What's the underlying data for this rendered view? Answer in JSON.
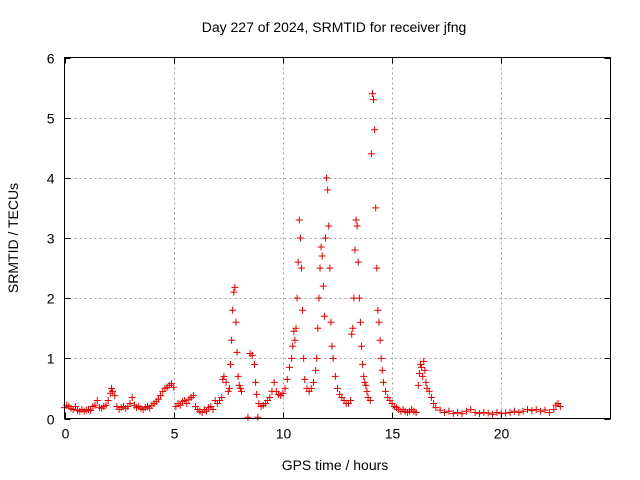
{
  "chart_data": {
    "type": "scatter",
    "title": "Day 227 of 2024, SRMTID for receiver jfng",
    "xlabel": "GPS time / hours",
    "ylabel": "SRMTID / TECUs",
    "xlim": [
      0,
      25
    ],
    "ylim": [
      0,
      6
    ],
    "xticks": [
      0,
      5,
      10,
      15,
      20
    ],
    "xtick_labels": [
      "0",
      "5",
      "10",
      "15",
      "20"
    ],
    "yticks": [
      0,
      1,
      2,
      3,
      4,
      5,
      6
    ],
    "ytick_labels": [
      "0",
      "1",
      "2",
      "3",
      "4",
      "5",
      "6"
    ],
    "grid": true,
    "marker": "+",
    "color": "#e00000",
    "series": [
      {
        "name": "SRMTID",
        "points": [
          [
            0.0,
            0.18
          ],
          [
            0.1,
            0.22
          ],
          [
            0.2,
            0.2
          ],
          [
            0.3,
            0.17
          ],
          [
            0.4,
            0.15
          ],
          [
            0.5,
            0.2
          ],
          [
            0.6,
            0.13
          ],
          [
            0.7,
            0.12
          ],
          [
            0.8,
            0.15
          ],
          [
            0.9,
            0.12
          ],
          [
            1.0,
            0.14
          ],
          [
            1.1,
            0.15
          ],
          [
            1.2,
            0.13
          ],
          [
            1.3,
            0.2
          ],
          [
            1.4,
            0.22
          ],
          [
            1.5,
            0.3
          ],
          [
            1.6,
            0.18
          ],
          [
            1.7,
            0.17
          ],
          [
            1.8,
            0.2
          ],
          [
            1.9,
            0.22
          ],
          [
            2.0,
            0.3
          ],
          [
            2.1,
            0.42
          ],
          [
            2.15,
            0.5
          ],
          [
            2.2,
            0.45
          ],
          [
            2.3,
            0.38
          ],
          [
            2.4,
            0.2
          ],
          [
            2.5,
            0.15
          ],
          [
            2.6,
            0.18
          ],
          [
            2.7,
            0.2
          ],
          [
            2.8,
            0.17
          ],
          [
            2.9,
            0.2
          ],
          [
            3.0,
            0.25
          ],
          [
            3.1,
            0.35
          ],
          [
            3.2,
            0.22
          ],
          [
            3.3,
            0.18
          ],
          [
            3.4,
            0.2
          ],
          [
            3.5,
            0.17
          ],
          [
            3.6,
            0.15
          ],
          [
            3.7,
            0.18
          ],
          [
            3.8,
            0.2
          ],
          [
            3.9,
            0.17
          ],
          [
            4.0,
            0.22
          ],
          [
            4.1,
            0.25
          ],
          [
            4.2,
            0.28
          ],
          [
            4.3,
            0.32
          ],
          [
            4.4,
            0.38
          ],
          [
            4.5,
            0.45
          ],
          [
            4.6,
            0.5
          ],
          [
            4.7,
            0.52
          ],
          [
            4.8,
            0.55
          ],
          [
            4.9,
            0.58
          ],
          [
            5.0,
            0.52
          ],
          [
            5.1,
            0.2
          ],
          [
            5.2,
            0.25
          ],
          [
            5.3,
            0.22
          ],
          [
            5.4,
            0.28
          ],
          [
            5.5,
            0.3
          ],
          [
            5.6,
            0.25
          ],
          [
            5.7,
            0.32
          ],
          [
            5.8,
            0.35
          ],
          [
            5.9,
            0.38
          ],
          [
            6.0,
            0.2
          ],
          [
            6.1,
            0.15
          ],
          [
            6.2,
            0.12
          ],
          [
            6.3,
            0.1
          ],
          [
            6.4,
            0.15
          ],
          [
            6.5,
            0.12
          ],
          [
            6.6,
            0.18
          ],
          [
            6.7,
            0.2
          ],
          [
            6.8,
            0.15
          ],
          [
            6.9,
            0.3
          ],
          [
            7.0,
            0.25
          ],
          [
            7.1,
            0.3
          ],
          [
            7.2,
            0.35
          ],
          [
            7.25,
            0.65
          ],
          [
            7.3,
            0.7
          ],
          [
            7.4,
            0.6
          ],
          [
            7.5,
            0.45
          ],
          [
            7.55,
            0.5
          ],
          [
            7.6,
            0.9
          ],
          [
            7.65,
            1.3
          ],
          [
            7.7,
            1.8
          ],
          [
            7.75,
            2.1
          ],
          [
            7.8,
            2.18
          ],
          [
            7.85,
            1.6
          ],
          [
            7.9,
            1.1
          ],
          [
            7.95,
            0.7
          ],
          [
            8.0,
            0.55
          ],
          [
            8.05,
            0.5
          ],
          [
            8.1,
            0.45
          ],
          [
            8.4,
            0.02
          ],
          [
            8.5,
            1.08
          ],
          [
            8.6,
            1.05
          ],
          [
            8.7,
            0.9
          ],
          [
            8.75,
            0.6
          ],
          [
            8.8,
            0.4
          ],
          [
            8.85,
            0.02
          ],
          [
            8.9,
            0.25
          ],
          [
            9.0,
            0.2
          ],
          [
            9.1,
            0.22
          ],
          [
            9.2,
            0.25
          ],
          [
            9.3,
            0.3
          ],
          [
            9.4,
            0.35
          ],
          [
            9.5,
            0.45
          ],
          [
            9.6,
            0.6
          ],
          [
            9.7,
            0.45
          ],
          [
            9.8,
            0.4
          ],
          [
            9.9,
            0.38
          ],
          [
            10.0,
            0.42
          ],
          [
            10.1,
            0.5
          ],
          [
            10.2,
            0.65
          ],
          [
            10.3,
            0.85
          ],
          [
            10.4,
            1.0
          ],
          [
            10.45,
            1.2
          ],
          [
            10.5,
            1.45
          ],
          [
            10.55,
            1.3
          ],
          [
            10.6,
            1.5
          ],
          [
            10.65,
            2.0
          ],
          [
            10.7,
            2.6
          ],
          [
            10.75,
            3.3
          ],
          [
            10.8,
            3.0
          ],
          [
            10.85,
            2.5
          ],
          [
            10.9,
            1.8
          ],
          [
            10.95,
            1.0
          ],
          [
            11.0,
            0.65
          ],
          [
            11.1,
            0.5
          ],
          [
            11.2,
            0.45
          ],
          [
            11.3,
            0.5
          ],
          [
            11.4,
            0.6
          ],
          [
            11.5,
            0.8
          ],
          [
            11.55,
            1.0
          ],
          [
            11.6,
            1.5
          ],
          [
            11.65,
            2.0
          ],
          [
            11.7,
            2.5
          ],
          [
            11.75,
            2.85
          ],
          [
            11.8,
            2.7
          ],
          [
            11.85,
            2.2
          ],
          [
            11.9,
            1.7
          ],
          [
            11.95,
            3.0
          ],
          [
            12.0,
            4.0
          ],
          [
            12.05,
            3.8
          ],
          [
            12.1,
            3.2
          ],
          [
            12.15,
            2.5
          ],
          [
            12.2,
            1.6
          ],
          [
            12.25,
            1.2
          ],
          [
            12.3,
            1.0
          ],
          [
            12.4,
            0.7
          ],
          [
            12.5,
            0.5
          ],
          [
            12.6,
            0.4
          ],
          [
            12.7,
            0.35
          ],
          [
            12.8,
            0.3
          ],
          [
            12.9,
            0.25
          ],
          [
            13.0,
            0.25
          ],
          [
            13.1,
            0.3
          ],
          [
            13.15,
            1.4
          ],
          [
            13.2,
            1.5
          ],
          [
            13.25,
            2.0
          ],
          [
            13.3,
            2.8
          ],
          [
            13.35,
            3.3
          ],
          [
            13.4,
            3.2
          ],
          [
            13.45,
            2.6
          ],
          [
            13.5,
            2.0
          ],
          [
            13.55,
            1.6
          ],
          [
            13.6,
            1.2
          ],
          [
            13.65,
            0.9
          ],
          [
            13.7,
            0.7
          ],
          [
            13.75,
            0.6
          ],
          [
            13.8,
            0.55
          ],
          [
            13.85,
            0.45
          ],
          [
            13.9,
            0.35
          ],
          [
            14.0,
            0.3
          ],
          [
            14.05,
            4.4
          ],
          [
            14.1,
            5.4
          ],
          [
            14.15,
            5.3
          ],
          [
            14.2,
            4.8
          ],
          [
            14.25,
            3.5
          ],
          [
            14.3,
            2.5
          ],
          [
            14.35,
            1.8
          ],
          [
            14.4,
            1.6
          ],
          [
            14.45,
            1.3
          ],
          [
            14.5,
            1.0
          ],
          [
            14.55,
            0.8
          ],
          [
            14.6,
            0.6
          ],
          [
            14.7,
            0.45
          ],
          [
            14.8,
            0.35
          ],
          [
            14.9,
            0.3
          ],
          [
            15.0,
            0.25
          ],
          [
            15.1,
            0.2
          ],
          [
            15.2,
            0.18
          ],
          [
            15.3,
            0.15
          ],
          [
            15.4,
            0.12
          ],
          [
            15.5,
            0.15
          ],
          [
            15.6,
            0.12
          ],
          [
            15.7,
            0.1
          ],
          [
            15.8,
            0.12
          ],
          [
            15.9,
            0.15
          ],
          [
            16.0,
            0.12
          ],
          [
            16.1,
            0.1
          ],
          [
            16.2,
            0.55
          ],
          [
            16.25,
            0.75
          ],
          [
            16.3,
            0.9
          ],
          [
            16.35,
            0.85
          ],
          [
            16.4,
            0.7
          ],
          [
            16.45,
            0.95
          ],
          [
            16.5,
            0.8
          ],
          [
            16.55,
            0.6
          ],
          [
            16.6,
            0.5
          ],
          [
            16.7,
            0.45
          ],
          [
            16.8,
            0.35
          ],
          [
            16.9,
            0.25
          ],
          [
            17.0,
            0.18
          ],
          [
            17.2,
            0.14
          ],
          [
            17.4,
            0.1
          ],
          [
            17.6,
            0.12
          ],
          [
            17.8,
            0.08
          ],
          [
            18.0,
            0.1
          ],
          [
            18.2,
            0.08
          ],
          [
            18.4,
            0.12
          ],
          [
            18.6,
            0.15
          ],
          [
            18.8,
            0.1
          ],
          [
            19.0,
            0.08
          ],
          [
            19.2,
            0.1
          ],
          [
            19.4,
            0.09
          ],
          [
            19.6,
            0.07
          ],
          [
            19.8,
            0.1
          ],
          [
            20.0,
            0.08
          ],
          [
            20.2,
            0.09
          ],
          [
            20.4,
            0.1
          ],
          [
            20.6,
            0.12
          ],
          [
            20.8,
            0.1
          ],
          [
            21.0,
            0.12
          ],
          [
            21.2,
            0.15
          ],
          [
            21.4,
            0.13
          ],
          [
            21.6,
            0.15
          ],
          [
            21.8,
            0.12
          ],
          [
            22.0,
            0.14
          ],
          [
            22.2,
            0.1
          ],
          [
            22.4,
            0.15
          ],
          [
            22.5,
            0.22
          ],
          [
            22.6,
            0.25
          ],
          [
            22.7,
            0.2
          ]
        ]
      }
    ]
  }
}
